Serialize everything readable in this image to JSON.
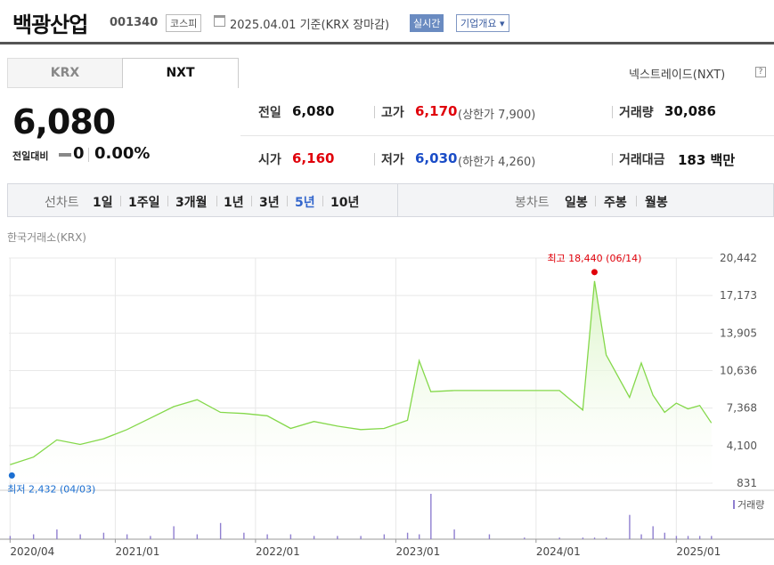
{
  "header": {
    "company": "백광산업",
    "code": "001340",
    "market": "코스피",
    "date": "2025.04.01",
    "basis": "기준(KRX 장마감)",
    "realtime": "실시간",
    "corp_overview": "기업개요 ▾"
  },
  "tabs": [
    "KRX",
    "NXT"
  ],
  "nxt_link": "넥스트레이드(NXT)",
  "help": "?",
  "summary": {
    "price": "6,080",
    "change_label": "전일대비",
    "change": "0",
    "change_pct": "0.00%",
    "prev_label": "전일",
    "prev": "6,080",
    "high_label": "고가",
    "high": "6,170",
    "upper_limit": "(상한가 7,900)",
    "volume_label": "거래량",
    "volume": "30,086",
    "open_label": "시가",
    "open": "6,160",
    "low_label": "저가",
    "low": "6,030",
    "lower_limit": "(하한가 4,260)",
    "amount_label": "거래대금",
    "amount": "183 백만"
  },
  "periods": {
    "line_label": "선차트",
    "line_items": [
      "1일",
      "1주일",
      "3개월",
      "1년",
      "3년",
      "5년",
      "10년"
    ],
    "selected": "5년",
    "candle_label": "봉차트",
    "candle_items": [
      "일봉",
      "주봉",
      "월봉"
    ]
  },
  "source": "한국거래소(KRX)",
  "colors": {
    "line": "#84d84a",
    "fill_top": "#d9f4c4",
    "high": "#e0000a",
    "low": "#1b6fd1",
    "volume": "#8f7fcf"
  },
  "chart_data": {
    "type": "area",
    "x": [
      "2020-04",
      "2020-06",
      "2020-08",
      "2020-10",
      "2020-12",
      "2021-02",
      "2021-04",
      "2021-06",
      "2021-08",
      "2021-10",
      "2021-12",
      "2022-02",
      "2022-04",
      "2022-06",
      "2022-08",
      "2022-10",
      "2022-12",
      "2023-02",
      "2023-03",
      "2023-04",
      "2023-06",
      "2023-09",
      "2023-12",
      "2024-03",
      "2024-05",
      "2024-06",
      "2024-07",
      "2024-09",
      "2024-10",
      "2024-11",
      "2024-12",
      "2025-01",
      "2025-02",
      "2025-03",
      "2025-04"
    ],
    "values": [
      2432,
      3100,
      4600,
      4200,
      4700,
      5500,
      6500,
      7500,
      8100,
      7000,
      6900,
      6700,
      5600,
      6200,
      5800,
      5500,
      5600,
      6300,
      11500,
      8800,
      8900,
      8900,
      8900,
      8900,
      7200,
      18440,
      12000,
      8300,
      11300,
      8500,
      7000,
      7800,
      7300,
      7600,
      6080
    ],
    "high": {
      "text": "최고 18,440 (06/14)",
      "value": 18440,
      "date": "2024-06"
    },
    "low": {
      "text": "최저 2,432 (04/03)",
      "value": 2432,
      "date": "2020-04"
    },
    "y_ticks": [
      "20,442",
      "17,173",
      "13,905",
      "10,636",
      "7,368",
      "4,100",
      "831"
    ],
    "ylim": [
      831,
      20442
    ],
    "x_ticks": [
      "2020/04",
      "2021/01",
      "2022/01",
      "2023/01",
      "2024/01",
      "2025/01"
    ],
    "volume_label": "거래량",
    "volume": [
      2,
      3,
      6,
      3,
      4,
      3,
      2,
      8,
      3,
      10,
      4,
      3,
      3,
      2,
      2,
      2,
      3,
      4,
      3,
      28,
      6,
      3,
      1,
      1,
      1,
      1,
      1,
      15,
      3,
      8,
      4,
      2,
      2,
      2,
      2
    ]
  }
}
